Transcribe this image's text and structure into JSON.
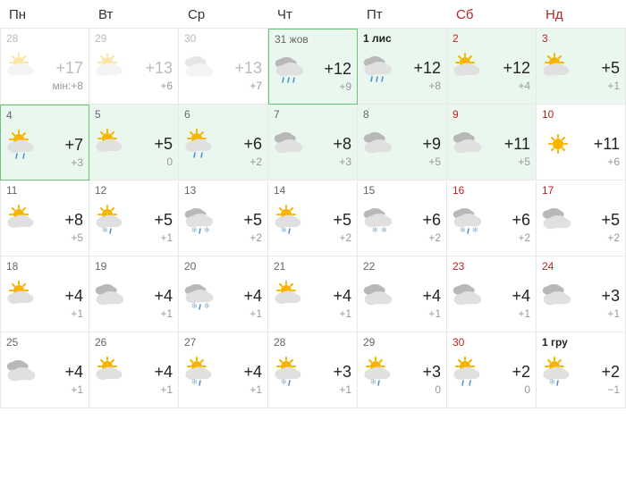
{
  "colors": {
    "weekend": "#c02020",
    "text": "#333333",
    "muted": "#999999",
    "border": "#e8e8e8",
    "highlight_bg": "#eaf7ee",
    "highlight_border": "#6bc278",
    "sun": "#f7b500",
    "cloud_light": "#e0e0e0",
    "cloud_dark": "#b8b8b8",
    "rain": "#4a90d9",
    "snow": "#9bb8d3"
  },
  "icons": {
    "partly-cloudy": "partly-cloudy",
    "cloudy": "cloudy",
    "rain": "rain",
    "partly-cloudy-rain": "partly-cloudy-rain",
    "light-rain": "light-rain",
    "sun": "sun",
    "cloudy-snow-rain": "cloudy-snow-rain",
    "partly-snow-rain": "partly-snow-rain",
    "cloudy-snow": "cloudy-snow",
    "partly-rain": "partly-rain"
  },
  "headers": [
    "Пн",
    "Вт",
    "Ср",
    "Чт",
    "Пт",
    "Сб",
    "Нд"
  ],
  "cells": [
    {
      "date": "28",
      "icon": "partly-cloudy",
      "hi": "+17",
      "lo": "мін:+8",
      "past": true
    },
    {
      "date": "29",
      "icon": "partly-cloudy",
      "hi": "+13",
      "lo": "+6",
      "past": true
    },
    {
      "date": "30",
      "icon": "cloudy",
      "hi": "+13",
      "lo": "+7",
      "past": true
    },
    {
      "date": "31 жов",
      "icon": "rain",
      "hi": "+12",
      "lo": "+9",
      "hl": true,
      "hlb": true
    },
    {
      "date": "1 лис",
      "icon": "rain",
      "hi": "+12",
      "lo": "+8",
      "hl": true,
      "bold": true
    },
    {
      "date": "2",
      "icon": "partly-cloudy",
      "hi": "+12",
      "lo": "+4",
      "hl": true,
      "weekend": true
    },
    {
      "date": "3",
      "icon": "partly-cloudy",
      "hi": "+5",
      "lo": "+1",
      "hl": true,
      "weekend": true
    },
    {
      "date": "4",
      "icon": "partly-cloudy-rain",
      "hi": "+7",
      "lo": "+3",
      "hl": true,
      "hlb": true
    },
    {
      "date": "5",
      "icon": "partly-cloudy",
      "hi": "+5",
      "lo": "0",
      "hl": true
    },
    {
      "date": "6",
      "icon": "partly-cloudy-rain",
      "hi": "+6",
      "lo": "+2",
      "hl": true
    },
    {
      "date": "7",
      "icon": "cloudy",
      "hi": "+8",
      "lo": "+3",
      "hl": true
    },
    {
      "date": "8",
      "icon": "cloudy",
      "hi": "+9",
      "lo": "+5",
      "hl": true
    },
    {
      "date": "9",
      "icon": "cloudy",
      "hi": "+11",
      "lo": "+5",
      "hl": true,
      "weekend": true
    },
    {
      "date": "10",
      "icon": "sun",
      "hi": "+11",
      "lo": "+6",
      "weekend": true
    },
    {
      "date": "11",
      "icon": "partly-cloudy",
      "hi": "+8",
      "lo": "+5"
    },
    {
      "date": "12",
      "icon": "partly-snow-rain",
      "hi": "+5",
      "lo": "+1"
    },
    {
      "date": "13",
      "icon": "cloudy-snow-rain",
      "hi": "+5",
      "lo": "+2"
    },
    {
      "date": "14",
      "icon": "partly-snow-rain",
      "hi": "+5",
      "lo": "+2"
    },
    {
      "date": "15",
      "icon": "cloudy-snow",
      "hi": "+6",
      "lo": "+2"
    },
    {
      "date": "16",
      "icon": "cloudy-snow-rain",
      "hi": "+6",
      "lo": "+2",
      "weekend": true
    },
    {
      "date": "17",
      "icon": "cloudy",
      "hi": "+5",
      "lo": "+2",
      "weekend": true
    },
    {
      "date": "18",
      "icon": "partly-cloudy",
      "hi": "+4",
      "lo": "+1"
    },
    {
      "date": "19",
      "icon": "cloudy",
      "hi": "+4",
      "lo": "+1"
    },
    {
      "date": "20",
      "icon": "cloudy-snow-rain",
      "hi": "+4",
      "lo": "+1"
    },
    {
      "date": "21",
      "icon": "partly-cloudy",
      "hi": "+4",
      "lo": "+1"
    },
    {
      "date": "22",
      "icon": "cloudy",
      "hi": "+4",
      "lo": "+1"
    },
    {
      "date": "23",
      "icon": "cloudy",
      "hi": "+4",
      "lo": "+1",
      "weekend": true
    },
    {
      "date": "24",
      "icon": "cloudy",
      "hi": "+3",
      "lo": "+1",
      "weekend": true
    },
    {
      "date": "25",
      "icon": "cloudy",
      "hi": "+4",
      "lo": "+1"
    },
    {
      "date": "26",
      "icon": "partly-cloudy",
      "hi": "+4",
      "lo": "+1"
    },
    {
      "date": "27",
      "icon": "partly-snow-rain",
      "hi": "+4",
      "lo": "+1"
    },
    {
      "date": "28",
      "icon": "partly-snow-rain",
      "hi": "+3",
      "lo": "+1"
    },
    {
      "date": "29",
      "icon": "partly-snow-rain",
      "hi": "+3",
      "lo": "0"
    },
    {
      "date": "30",
      "icon": "partly-cloudy-rain",
      "hi": "+2",
      "lo": "0",
      "weekend": true
    },
    {
      "date": "1 гру",
      "icon": "partly-snow-rain",
      "hi": "+2",
      "lo": "−1",
      "weekend": true,
      "bold": true
    }
  ]
}
